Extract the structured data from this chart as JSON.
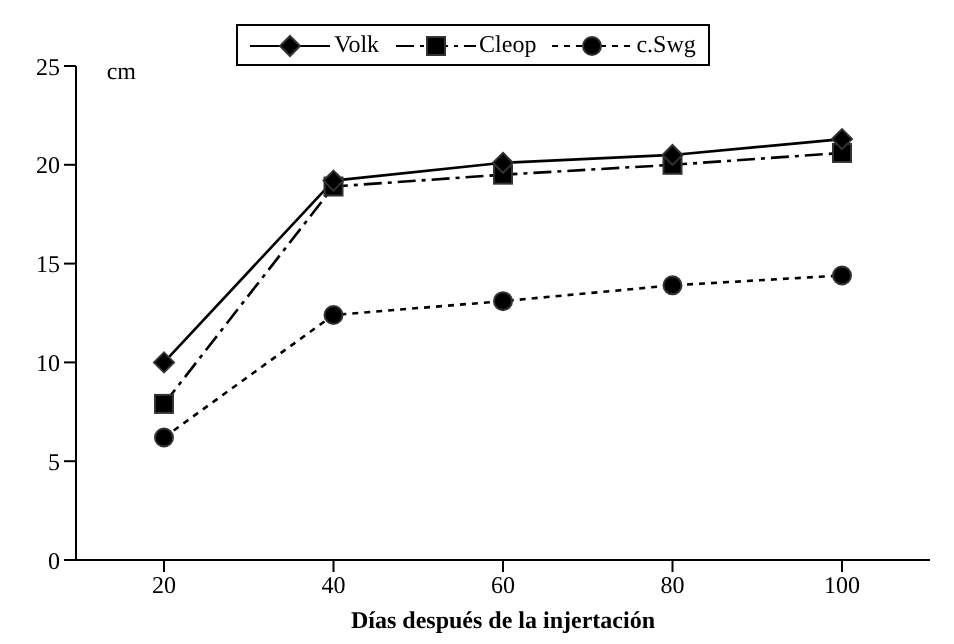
{
  "chart_data": {
    "type": "line",
    "xlabel": "Días después de la injertación",
    "ylabel": "cm",
    "categories": [
      "20",
      "40",
      "60",
      "80",
      "100"
    ],
    "series": [
      {
        "name": "Volk",
        "color": "#000000",
        "marker": "diamond",
        "line_style": "solid",
        "values": [
          10,
          19.2,
          20.1,
          20.5,
          21.3
        ]
      },
      {
        "name": "Cleop",
        "color": "#000000",
        "marker": "square",
        "line_style": "dashdot",
        "values": [
          7.9,
          18.9,
          19.5,
          20.0,
          20.6
        ]
      },
      {
        "name": "c.Swg",
        "color": "#000000",
        "marker": "circle",
        "line_style": "dotted",
        "values": [
          6.2,
          12.4,
          13.1,
          13.9,
          14.4
        ]
      }
    ],
    "ylim": [
      0,
      25
    ],
    "yticks": [
      0,
      5,
      10,
      15,
      20,
      25
    ],
    "grid": false,
    "legend": "top"
  }
}
